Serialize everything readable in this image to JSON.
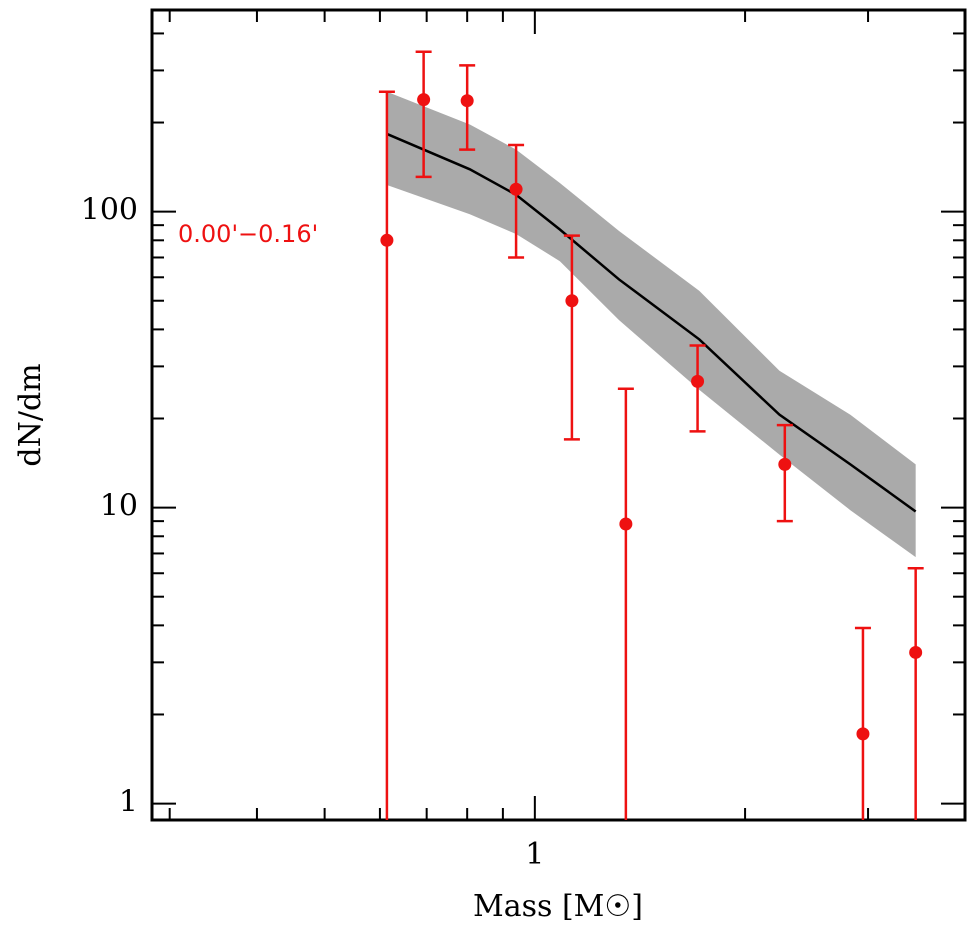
{
  "chart_data": {
    "type": "errorbar_loglog",
    "xlabel": "Mass [M☉]",
    "ylabel": "dN/dm",
    "annotation": "0.00'−0.16'",
    "xlog": true,
    "ylog": true,
    "xlim": [
      0.283,
      4.13
    ],
    "ylim": [
      0.88,
      480
    ],
    "xticks": [
      1
    ],
    "xminorticks": [
      0.3,
      0.4,
      0.5,
      0.6,
      0.7,
      0.8,
      0.9,
      2,
      3
    ],
    "yticks": [
      1,
      10,
      100
    ],
    "yminorticks": [
      2,
      3,
      4,
      5,
      6,
      7,
      8,
      9,
      20,
      30,
      40,
      50,
      60,
      70,
      80,
      90,
      200,
      300,
      400
    ],
    "x": [
      0.614,
      0.693,
      0.8,
      0.94,
      1.13,
      1.35,
      1.71,
      2.28,
      2.95,
      3.51
    ],
    "values": [
      80,
      239,
      237,
      119,
      50,
      8.8,
      26.7,
      14,
      1.72,
      3.24
    ],
    "yerr": [
      174,
      108,
      75,
      49,
      33,
      16.4,
      8.6,
      5,
      2.2,
      3
    ],
    "color": "#ee1111",
    "model_x": [
      0.614,
      0.807,
      0.94,
      1.086,
      1.32,
      1.72,
      2.24,
      2.83,
      3.51
    ],
    "model": [
      183,
      139,
      114,
      87,
      59,
      37,
      20.6,
      14,
      9.7
    ],
    "band_low": [
      123,
      98,
      84,
      68,
      43,
      25,
      15.1,
      9.8,
      6.8
    ],
    "band_high": [
      254,
      197,
      162,
      125,
      86,
      54,
      29,
      20.6,
      14
    ],
    "model_color": "#000000",
    "band_color": "#aaaaaa"
  }
}
